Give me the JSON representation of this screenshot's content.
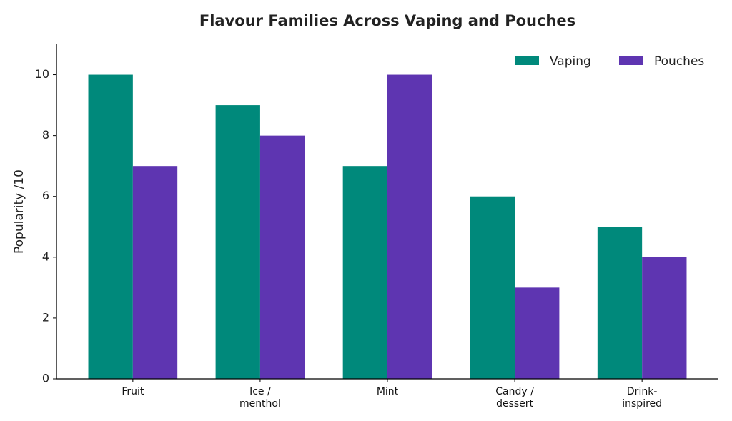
{
  "chart_data": {
    "type": "bar",
    "title": "Flavour Families Across Vaping and Pouches",
    "ylabel": "Popularity /10",
    "categories": [
      "Fruit",
      "Ice /\nmenthol",
      "Mint",
      "Candy /\ndessert",
      "Drink-\ninspired"
    ],
    "series": [
      {
        "name": "Vaping",
        "color": "#00897b",
        "values": [
          10,
          9,
          7,
          6,
          5
        ]
      },
      {
        "name": "Pouches",
        "color": "#5e35b1",
        "values": [
          7,
          8,
          10,
          3,
          4
        ]
      }
    ],
    "ylim": [
      0,
      11
    ],
    "yticks": [
      0,
      2,
      4,
      6,
      8,
      10
    ],
    "grid": false,
    "legend": "upper right"
  }
}
